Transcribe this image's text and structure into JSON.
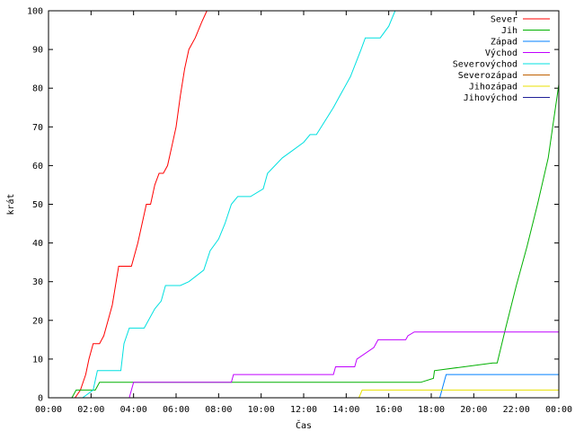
{
  "chart_data": {
    "type": "line",
    "title": "",
    "xlabel": "Čas",
    "ylabel": "krát",
    "xlim": [
      0,
      24
    ],
    "ylim": [
      0,
      100
    ],
    "x_tick_labels": [
      "00:00",
      "02:00",
      "04:00",
      "06:00",
      "08:00",
      "10:00",
      "12:00",
      "14:00",
      "16:00",
      "18:00",
      "20:00",
      "22:00",
      "00:00"
    ],
    "y_tick_labels": [
      "0",
      "10",
      "20",
      "30",
      "40",
      "50",
      "60",
      "70",
      "80",
      "90",
      "100"
    ],
    "grid": false,
    "legend_position": "top-right",
    "series": [
      {
        "name": "Sever",
        "color": "#ff0000",
        "x": [
          1.25,
          1.5,
          1.75,
          1.9,
          2.1,
          2.4,
          2.6,
          2.8,
          3.0,
          3.3,
          3.6,
          3.9,
          4.2,
          4.6,
          4.8,
          5.0,
          5.2,
          5.4,
          5.6,
          5.8,
          6.0,
          6.2,
          6.4,
          6.6,
          6.9,
          7.2,
          7.45
        ],
        "y": [
          0,
          2,
          6,
          10,
          14,
          14,
          16,
          20,
          24,
          34,
          34,
          34,
          40,
          50,
          50,
          55,
          58,
          58,
          60,
          65,
          70,
          78,
          85,
          90,
          93,
          97,
          100
        ]
      },
      {
        "name": "Jih",
        "color": "#00b000",
        "x": [
          1.1,
          1.3,
          2.2,
          2.4,
          17.5,
          18.1,
          18.15,
          20.9,
          21.1,
          21.5,
          22.0,
          22.5,
          23.0,
          23.5,
          24.0
        ],
        "y": [
          0,
          2,
          2,
          4,
          4,
          5,
          7,
          9,
          9,
          18,
          29,
          39,
          50,
          62,
          81
        ]
      },
      {
        "name": "Západ",
        "color": "#0080ff",
        "x": [
          18.4,
          18.55,
          18.7,
          24.0
        ],
        "y": [
          0,
          3,
          6,
          6
        ]
      },
      {
        "name": "Východ",
        "color": "#c000ff",
        "x": [
          3.8,
          3.9,
          4.0,
          8.6,
          8.7,
          13.4,
          13.5,
          14.4,
          14.5,
          15.3,
          15.5,
          16.8,
          16.9,
          17.2,
          24.0
        ],
        "y": [
          0,
          2,
          4,
          4,
          6,
          6,
          8,
          8,
          10,
          13,
          15,
          15,
          16,
          17,
          17
        ]
      },
      {
        "name": "Severovýchod",
        "color": "#00e0e0",
        "x": [
          1.6,
          2.1,
          2.3,
          3.4,
          3.55,
          3.8,
          4.5,
          5.0,
          5.3,
          5.5,
          6.2,
          6.6,
          7.3,
          7.6,
          8.0,
          8.3,
          8.6,
          8.9,
          9.5,
          10.1,
          10.3,
          11.0,
          11.5,
          12.0,
          12.3,
          12.6,
          13.4,
          13.7,
          14.2,
          14.7,
          14.9,
          15.6,
          16.0,
          16.3
        ],
        "y": [
          0,
          2,
          7,
          7,
          14,
          18,
          18,
          23,
          25,
          29,
          29,
          30,
          33,
          38,
          41,
          45,
          50,
          52,
          52,
          54,
          58,
          62,
          64,
          66,
          68,
          68,
          75,
          78,
          83,
          90,
          93,
          93,
          96,
          100
        ]
      },
      {
        "name": "Severozápad",
        "color": "#c06000",
        "x": [],
        "y": []
      },
      {
        "name": "Jihozápad",
        "color": "#e8e000",
        "x": [
          14.6,
          14.75,
          24.0
        ],
        "y": [
          0,
          2,
          2
        ]
      },
      {
        "name": "Jihovýchod",
        "color": "#202098",
        "x": [],
        "y": []
      }
    ]
  }
}
